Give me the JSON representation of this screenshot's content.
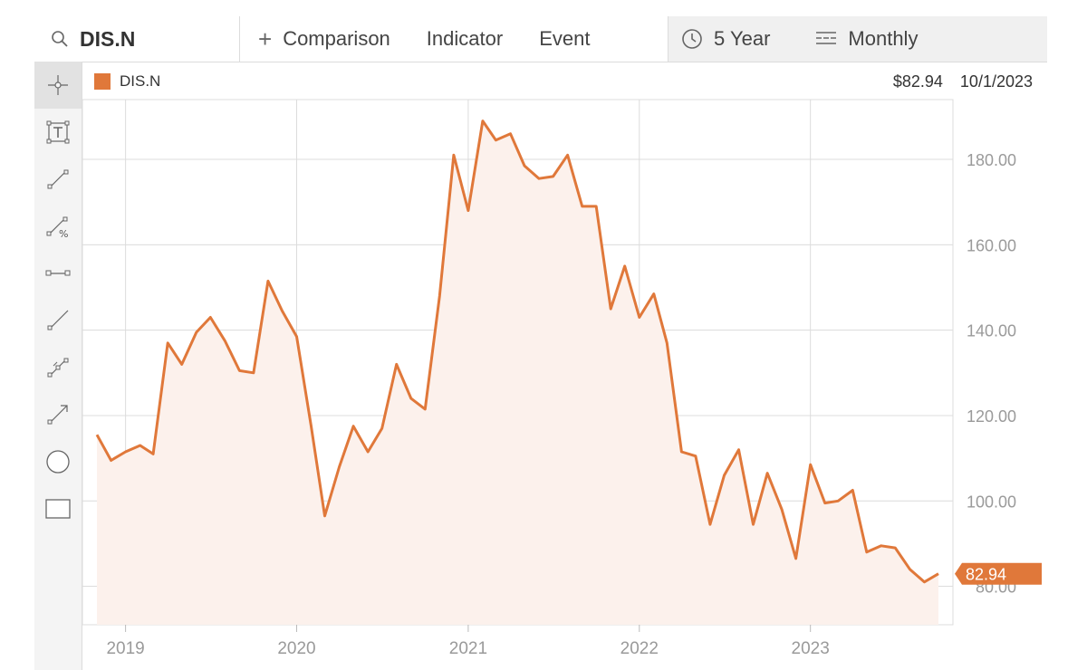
{
  "toolbar": {
    "ticker": "DIS.N",
    "comparison_label": "Comparison",
    "indicator_label": "Indicator",
    "event_label": "Event",
    "range_label": "5 Year",
    "interval_label": "Monthly",
    "search_icon": "search-icon",
    "range_icon": "clock-icon",
    "interval_icon": "interval-lines-icon"
  },
  "sidebar": {
    "tools": [
      {
        "name": "crosshair-tool",
        "icon": "crosshair-icon",
        "active": true
      },
      {
        "name": "text-tool",
        "icon": "text-box-icon"
      },
      {
        "name": "line-tool",
        "icon": "line-segment-icon"
      },
      {
        "name": "percent-line-tool",
        "icon": "percent-line-icon"
      },
      {
        "name": "horizontal-line-tool",
        "icon": "horizontal-segment-icon"
      },
      {
        "name": "ray-tool",
        "icon": "ray-icon"
      },
      {
        "name": "multi-point-tool",
        "icon": "multi-point-line-icon"
      },
      {
        "name": "arrow-tool",
        "icon": "arrow-line-icon"
      },
      {
        "name": "circle-tool",
        "icon": "circle-icon"
      },
      {
        "name": "rectangle-tool",
        "icon": "rectangle-icon"
      }
    ]
  },
  "readout": {
    "price": "$82.94",
    "date": "10/1/2023"
  },
  "colors": {
    "line": "#e0783a",
    "fill": "#fcf1ec",
    "grid": "#dcdcdc",
    "axis_text": "#9a9a9a",
    "accent": "#e0783a"
  },
  "chart_data": {
    "type": "area",
    "series": [
      {
        "name": "DIS.N",
        "points": [
          [
            "2018-11-01",
            115.5
          ],
          [
            "2018-12-01",
            109.5
          ],
          [
            "2019-01-01",
            111.5
          ],
          [
            "2019-02-01",
            113.0
          ],
          [
            "2019-03-01",
            111.0
          ],
          [
            "2019-04-01",
            137.0
          ],
          [
            "2019-05-01",
            132.0
          ],
          [
            "2019-06-01",
            139.5
          ],
          [
            "2019-07-01",
            143.0
          ],
          [
            "2019-08-01",
            137.5
          ],
          [
            "2019-09-01",
            130.5
          ],
          [
            "2019-10-01",
            130.0
          ],
          [
            "2019-11-01",
            151.5
          ],
          [
            "2019-12-01",
            144.5
          ],
          [
            "2020-01-01",
            138.5
          ],
          [
            "2020-02-01",
            117.5
          ],
          [
            "2020-03-01",
            96.5
          ],
          [
            "2020-04-01",
            108.0
          ],
          [
            "2020-05-01",
            117.5
          ],
          [
            "2020-06-01",
            111.5
          ],
          [
            "2020-07-01",
            117.0
          ],
          [
            "2020-08-01",
            132.0
          ],
          [
            "2020-09-01",
            124.0
          ],
          [
            "2020-10-01",
            121.5
          ],
          [
            "2020-11-01",
            148.0
          ],
          [
            "2020-12-01",
            181.0
          ],
          [
            "2021-01-01",
            168.0
          ],
          [
            "2021-02-01",
            189.0
          ],
          [
            "2021-03-01",
            184.5
          ],
          [
            "2021-04-01",
            186.0
          ],
          [
            "2021-05-01",
            178.5
          ],
          [
            "2021-06-01",
            175.5
          ],
          [
            "2021-07-01",
            176.0
          ],
          [
            "2021-08-01",
            181.0
          ],
          [
            "2021-09-01",
            169.0
          ],
          [
            "2021-10-01",
            169.0
          ],
          [
            "2021-11-01",
            145.0
          ],
          [
            "2021-12-01",
            155.0
          ],
          [
            "2022-01-01",
            143.0
          ],
          [
            "2022-02-01",
            148.5
          ],
          [
            "2022-03-01",
            137.0
          ],
          [
            "2022-04-01",
            111.5
          ],
          [
            "2022-05-01",
            110.5
          ],
          [
            "2022-06-01",
            94.5
          ],
          [
            "2022-07-01",
            106.0
          ],
          [
            "2022-08-01",
            112.0
          ],
          [
            "2022-09-01",
            94.5
          ],
          [
            "2022-10-01",
            106.5
          ],
          [
            "2022-11-01",
            98.0
          ],
          [
            "2022-12-01",
            86.5
          ],
          [
            "2023-01-01",
            108.5
          ],
          [
            "2023-02-01",
            99.5
          ],
          [
            "2023-03-01",
            100.0
          ],
          [
            "2023-04-01",
            102.5
          ],
          [
            "2023-05-01",
            88.0
          ],
          [
            "2023-06-01",
            89.5
          ],
          [
            "2023-07-01",
            89.0
          ],
          [
            "2023-08-01",
            84.0
          ],
          [
            "2023-09-01",
            81.0
          ],
          [
            "2023-10-01",
            82.94
          ]
        ]
      }
    ],
    "x_ticks": [
      "2019",
      "2020",
      "2021",
      "2022",
      "2023"
    ],
    "y_ticks": [
      "80.00",
      "100.00",
      "120.00",
      "140.00",
      "160.00",
      "180.00"
    ],
    "y_range": [
      71,
      194
    ],
    "x_range": [
      "2018-10-01",
      "2023-11-01"
    ],
    "last_value_label": "82.94",
    "grid": true,
    "legend_position": "top-left"
  }
}
